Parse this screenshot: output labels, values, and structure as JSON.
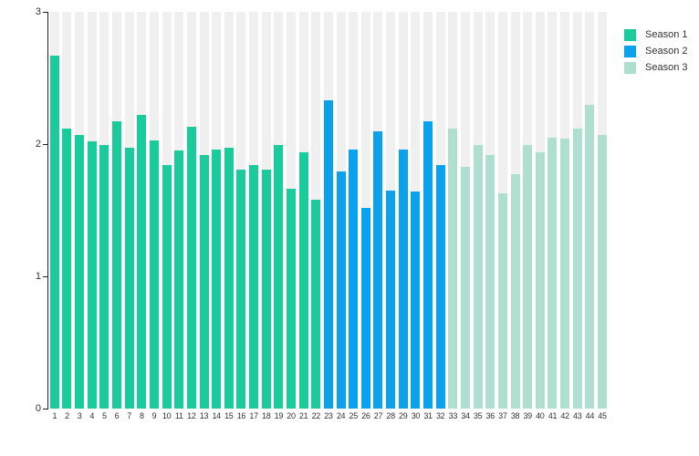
{
  "chart_data": {
    "type": "bar",
    "title": "",
    "xlabel": "",
    "ylabel": "",
    "ylim": [
      0,
      3
    ],
    "yticks": [
      "0",
      "1",
      "2",
      "3"
    ],
    "grid": false,
    "legend_position": "top-right",
    "background_track": {
      "visible": true,
      "color": "#f0f0f0",
      "max": 3
    },
    "categories": [
      "1",
      "2",
      "3",
      "4",
      "5",
      "6",
      "7",
      "8",
      "9",
      "10",
      "11",
      "12",
      "13",
      "14",
      "15",
      "16",
      "17",
      "18",
      "19",
      "20",
      "21",
      "22",
      "23",
      "24",
      "25",
      "26",
      "27",
      "28",
      "29",
      "30",
      "31",
      "32",
      "33",
      "34",
      "35",
      "36",
      "37",
      "38",
      "39",
      "40",
      "41",
      "42",
      "43",
      "44",
      "45"
    ],
    "series": [
      {
        "name": "Season 1",
        "color": "#1acb9c",
        "start": 1,
        "values": [
          2.67,
          2.12,
          2.07,
          2.02,
          1.99,
          2.17,
          1.97,
          2.22,
          2.03,
          1.84,
          1.95,
          2.13,
          1.92,
          1.96,
          1.97,
          1.81,
          1.84,
          1.81,
          1.99,
          1.66,
          1.94,
          1.58
        ]
      },
      {
        "name": "Season 2",
        "color": "#0aa2ec",
        "start": 23,
        "values": [
          2.33,
          1.79,
          1.96,
          1.52,
          2.1,
          1.65,
          1.96,
          1.64,
          2.17,
          1.84
        ]
      },
      {
        "name": "Season 3",
        "color": "#aedfcf",
        "start": 33,
        "values": [
          2.12,
          1.83,
          1.99,
          1.92,
          1.63,
          1.77,
          1.99,
          1.94,
          2.05,
          2.04,
          2.12,
          2.3,
          2.07
        ]
      }
    ]
  },
  "colors": {
    "axis": "#222222",
    "tick_text": "#333333",
    "canvas": "#ffffff"
  }
}
